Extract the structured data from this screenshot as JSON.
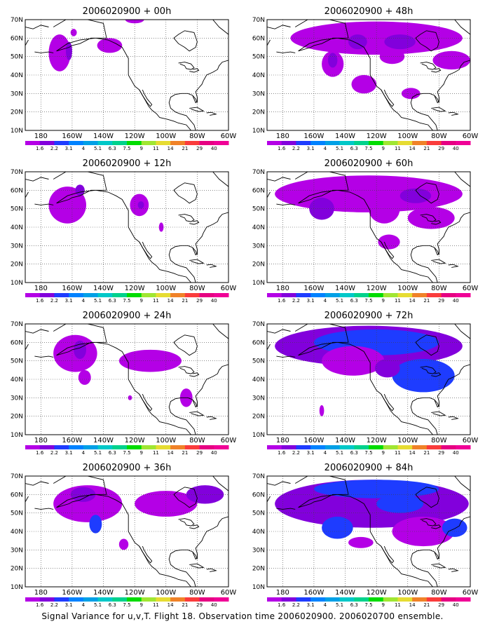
{
  "panels": [
    {
      "id": "p00",
      "title": "2006020900 + 00h"
    },
    {
      "id": "p48",
      "title": "2006020900 + 48h"
    },
    {
      "id": "p12",
      "title": "2006020900 + 12h"
    },
    {
      "id": "p60",
      "title": "2006020900 + 60h"
    },
    {
      "id": "p24",
      "title": "2006020900 + 24h"
    },
    {
      "id": "p72",
      "title": "2006020900 + 72h"
    },
    {
      "id": "p36",
      "title": "2006020900 + 36h"
    },
    {
      "id": "p84",
      "title": "2006020900 + 84h"
    }
  ],
  "lat_labels": [
    "70N",
    "60N",
    "50N",
    "40N",
    "30N",
    "20N",
    "10N"
  ],
  "lon_labels": [
    "180",
    "160W",
    "140W",
    "120W",
    "100W",
    "80W",
    "60W"
  ],
  "colorbar": {
    "labels": [
      "1.6",
      "2.2",
      "3.1",
      "4",
      "5.1",
      "6.3",
      "7.5",
      "9",
      "11",
      "14",
      "21",
      "29",
      "40"
    ],
    "colors": [
      "#b400e6",
      "#8200dc",
      "#1e3cff",
      "#0082ff",
      "#00a0e6",
      "#00c8c8",
      "#00d28c",
      "#00dc00",
      "#a0e632",
      "#e6dc32",
      "#f08228",
      "#fa3c3c",
      "#e60082",
      "#f00096"
    ]
  },
  "caption": "Signal Variance for u,v,T. Flight 18. Observation time 2006020900. 2006020700 ensemble.",
  "colors": {
    "violet": "#b400e6",
    "purple": "#8200dc",
    "blue": "#1e3cff",
    "lightblue": "#0082ff",
    "cyan": "#00a0e6",
    "green": "#00c8c8"
  }
}
